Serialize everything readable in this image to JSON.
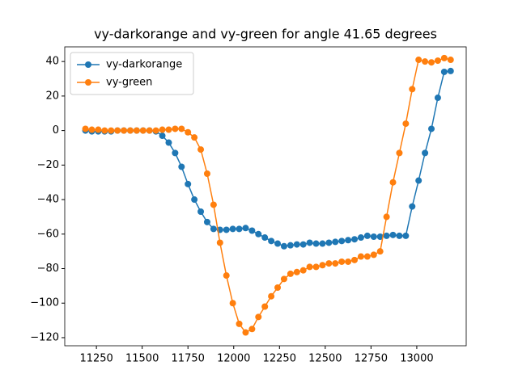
{
  "chart_data": {
    "type": "line",
    "title": "vy-darkorange and vy-green for angle 41.65 degrees",
    "x": [
      11190,
      11225,
      11260,
      11295,
      11330,
      11365,
      11400,
      11435,
      11470,
      11505,
      11540,
      11575,
      11610,
      11645,
      11680,
      11715,
      11750,
      11785,
      11820,
      11855,
      11890,
      11925,
      11960,
      11995,
      12030,
      12065,
      12100,
      12135,
      12170,
      12205,
      12240,
      12275,
      12310,
      12345,
      12380,
      12415,
      12450,
      12485,
      12520,
      12555,
      12590,
      12625,
      12660,
      12695,
      12730,
      12765,
      12800,
      12835,
      12870,
      12905,
      12940,
      12975,
      13010,
      13045,
      13080,
      13115,
      13150,
      13185
    ],
    "series": [
      {
        "name": "vy-darkorange",
        "color": "#1f77b4",
        "values": [
          0,
          -0.5,
          -0.5,
          -0.5,
          -0.5,
          0,
          0,
          0,
          0,
          0,
          0,
          -0.5,
          -3,
          -7,
          -13,
          -21,
          -31,
          -40,
          -47,
          -53,
          -57,
          -57.5,
          -57.5,
          -57,
          -57,
          -56.5,
          -58,
          -60,
          -62,
          -64,
          -65.5,
          -67,
          -66.5,
          -66,
          -66,
          -65,
          -65.5,
          -65.5,
          -65,
          -64.5,
          -64,
          -63.5,
          -63,
          -62,
          -61,
          -61.5,
          -61.5,
          -61,
          -60.5,
          -61,
          -61,
          -44,
          -29,
          -13,
          1,
          19,
          34,
          34.5
        ]
      },
      {
        "name": "vy-green",
        "color": "#ff7f0e",
        "values": [
          1,
          0.5,
          0.5,
          0,
          0,
          0,
          0,
          0,
          0,
          0,
          0,
          0,
          0.5,
          0.5,
          1,
          1,
          -1,
          -4,
          -11,
          -25,
          -43,
          -65,
          -84,
          -100,
          -112,
          -117,
          -115,
          -108,
          -102,
          -96,
          -91,
          -86,
          -83,
          -82,
          -81,
          -79,
          -79,
          -78,
          -77,
          -77,
          -76,
          -76,
          -75,
          -73,
          -73,
          -72,
          -70,
          -50,
          -30,
          -13,
          4,
          24,
          41,
          40,
          39.5,
          40.5,
          42,
          41
        ]
      }
    ],
    "xlim": [
      11077,
      13270
    ],
    "xticks": [
      11250,
      11500,
      11750,
      12000,
      12250,
      12500,
      12750,
      13000
    ],
    "ylim": [
      -124.7,
      48.5
    ],
    "yticks": [
      {
        "value": -120,
        "label": "−120"
      },
      {
        "value": -100,
        "label": "−100"
      },
      {
        "value": -80,
        "label": "−80"
      },
      {
        "value": -60,
        "label": "−60"
      },
      {
        "value": -40,
        "label": "−40"
      },
      {
        "value": -20,
        "label": "−20"
      },
      0,
      20,
      40
    ],
    "legend": "upper left"
  }
}
